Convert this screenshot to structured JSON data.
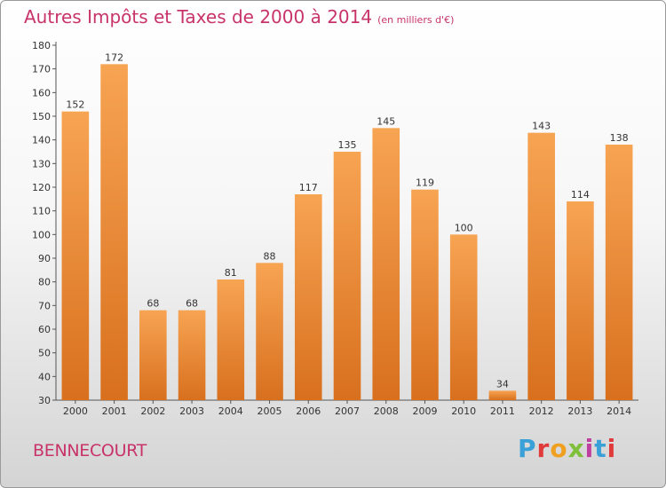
{
  "header": {
    "title": "Autres Impôts et Taxes de 2000 à 2014",
    "unit": "(en milliers d'€)"
  },
  "footer": {
    "place": "BENNECOURT",
    "logo": [
      "P",
      "r",
      "o",
      "x",
      "i",
      "t",
      "i"
    ],
    "logo_colors": [
      "#3aa0d8",
      "#e03a3a",
      "#f0a020",
      "#7fbf3a",
      "#c040a0",
      "#3aa0d8",
      "#e03a3a"
    ]
  },
  "chart_data": {
    "type": "bar",
    "categories": [
      "2000",
      "2001",
      "2002",
      "2003",
      "2004",
      "2005",
      "2006",
      "2007",
      "2008",
      "2009",
      "2010",
      "2011",
      "2012",
      "2013",
      "2014"
    ],
    "values": [
      152,
      172,
      68,
      68,
      81,
      88,
      117,
      135,
      145,
      119,
      100,
      34,
      143,
      114,
      138
    ],
    "title": "Autres Impôts et Taxes de 2000 à 2014",
    "ylim": [
      30,
      180
    ],
    "yticks": [
      30,
      40,
      50,
      60,
      70,
      80,
      90,
      100,
      110,
      120,
      130,
      140,
      150,
      160,
      170,
      180
    ],
    "grid": false,
    "bar_color": "#f0923a"
  }
}
